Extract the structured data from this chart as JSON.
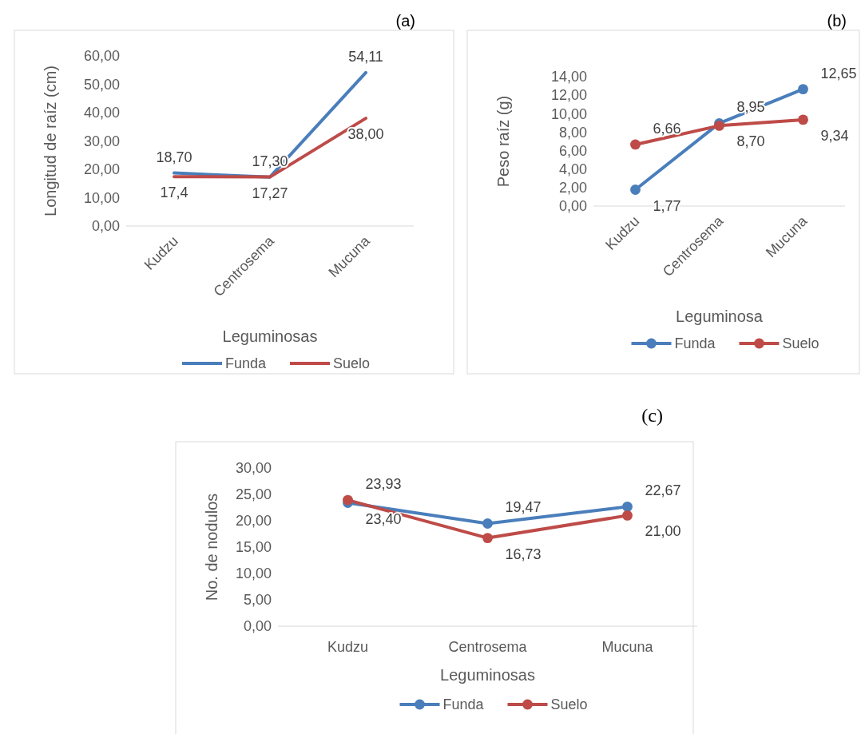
{
  "chart_data": [
    {
      "type": "line",
      "title": "(a)",
      "xlabel": "Leguminosas",
      "ylabel": "Longitud de raíz (cm)",
      "categories": [
        "Kudzu",
        "Centrosema",
        "Mucuna"
      ],
      "ylim": [
        0,
        60
      ],
      "yticks": [
        {
          "value": 0,
          "label": "0,00"
        },
        {
          "value": 10,
          "label": "10,00"
        },
        {
          "value": 20,
          "label": "20,00"
        },
        {
          "value": 30,
          "label": "30,00"
        },
        {
          "value": 40,
          "label": "40,00"
        },
        {
          "value": 50,
          "label": "50,00"
        },
        {
          "value": 60,
          "label": "60,00"
        }
      ],
      "grid": false,
      "legend": "bottom",
      "marker": "none",
      "series": [
        {
          "name": "Funda",
          "color": "#4a7ebb",
          "values": [
            18.7,
            17.27,
            54.11
          ],
          "value_labels": [
            "18,70",
            "17,27",
            "54,11"
          ]
        },
        {
          "name": "Suelo",
          "color": "#be4b48",
          "values": [
            17.4,
            17.3,
            38.0
          ],
          "value_labels": [
            "17,4",
            "17,30",
            "38,00"
          ]
        }
      ]
    },
    {
      "type": "line",
      "title": "(b)",
      "xlabel": "Leguminosa",
      "ylabel": "Peso raíz (g)",
      "categories": [
        "Kudzu",
        "Centrosema",
        "Mucuna"
      ],
      "ylim": [
        0,
        14
      ],
      "yticks": [
        {
          "value": 0,
          "label": "0,00"
        },
        {
          "value": 2,
          "label": "2,00"
        },
        {
          "value": 4,
          "label": "4,00"
        },
        {
          "value": 6,
          "label": "6,00"
        },
        {
          "value": 8,
          "label": "8,00"
        },
        {
          "value": 10,
          "label": "10,00"
        },
        {
          "value": 12,
          "label": "12,00"
        },
        {
          "value": 14,
          "label": "14,00"
        }
      ],
      "grid": false,
      "legend": "bottom",
      "marker": "circle",
      "series": [
        {
          "name": "Funda",
          "color": "#4a7ebb",
          "values": [
            1.77,
            8.95,
            12.65
          ],
          "value_labels": [
            "1,77",
            "8,95",
            "12,65"
          ]
        },
        {
          "name": "Suelo",
          "color": "#be4b48",
          "values": [
            6.66,
            8.7,
            9.34
          ],
          "value_labels": [
            "6,66",
            "8,70",
            "9,34"
          ]
        }
      ]
    },
    {
      "type": "line",
      "title": "(c)",
      "xlabel": "Leguminosas",
      "ylabel": "No. de nodulos",
      "categories": [
        "Kudzu",
        "Centrosema",
        "Mucuna"
      ],
      "ylim": [
        0,
        30
      ],
      "yticks": [
        {
          "value": 0,
          "label": "0,00"
        },
        {
          "value": 5,
          "label": "5,00"
        },
        {
          "value": 10,
          "label": "10,00"
        },
        {
          "value": 15,
          "label": "15,00"
        },
        {
          "value": 20,
          "label": "20,00"
        },
        {
          "value": 25,
          "label": "25,00"
        },
        {
          "value": 30,
          "label": "30,00"
        }
      ],
      "grid": false,
      "legend": "bottom",
      "marker": "circle",
      "series": [
        {
          "name": "Funda",
          "color": "#4a7ebb",
          "values": [
            23.4,
            19.47,
            22.67
          ],
          "value_labels": [
            "23,40",
            "19,47",
            "22,67"
          ]
        },
        {
          "name": "Suelo",
          "color": "#be4b48",
          "values": [
            23.93,
            16.73,
            21.0
          ],
          "value_labels": [
            "23,93",
            "16,73",
            "21,00"
          ]
        }
      ]
    }
  ]
}
